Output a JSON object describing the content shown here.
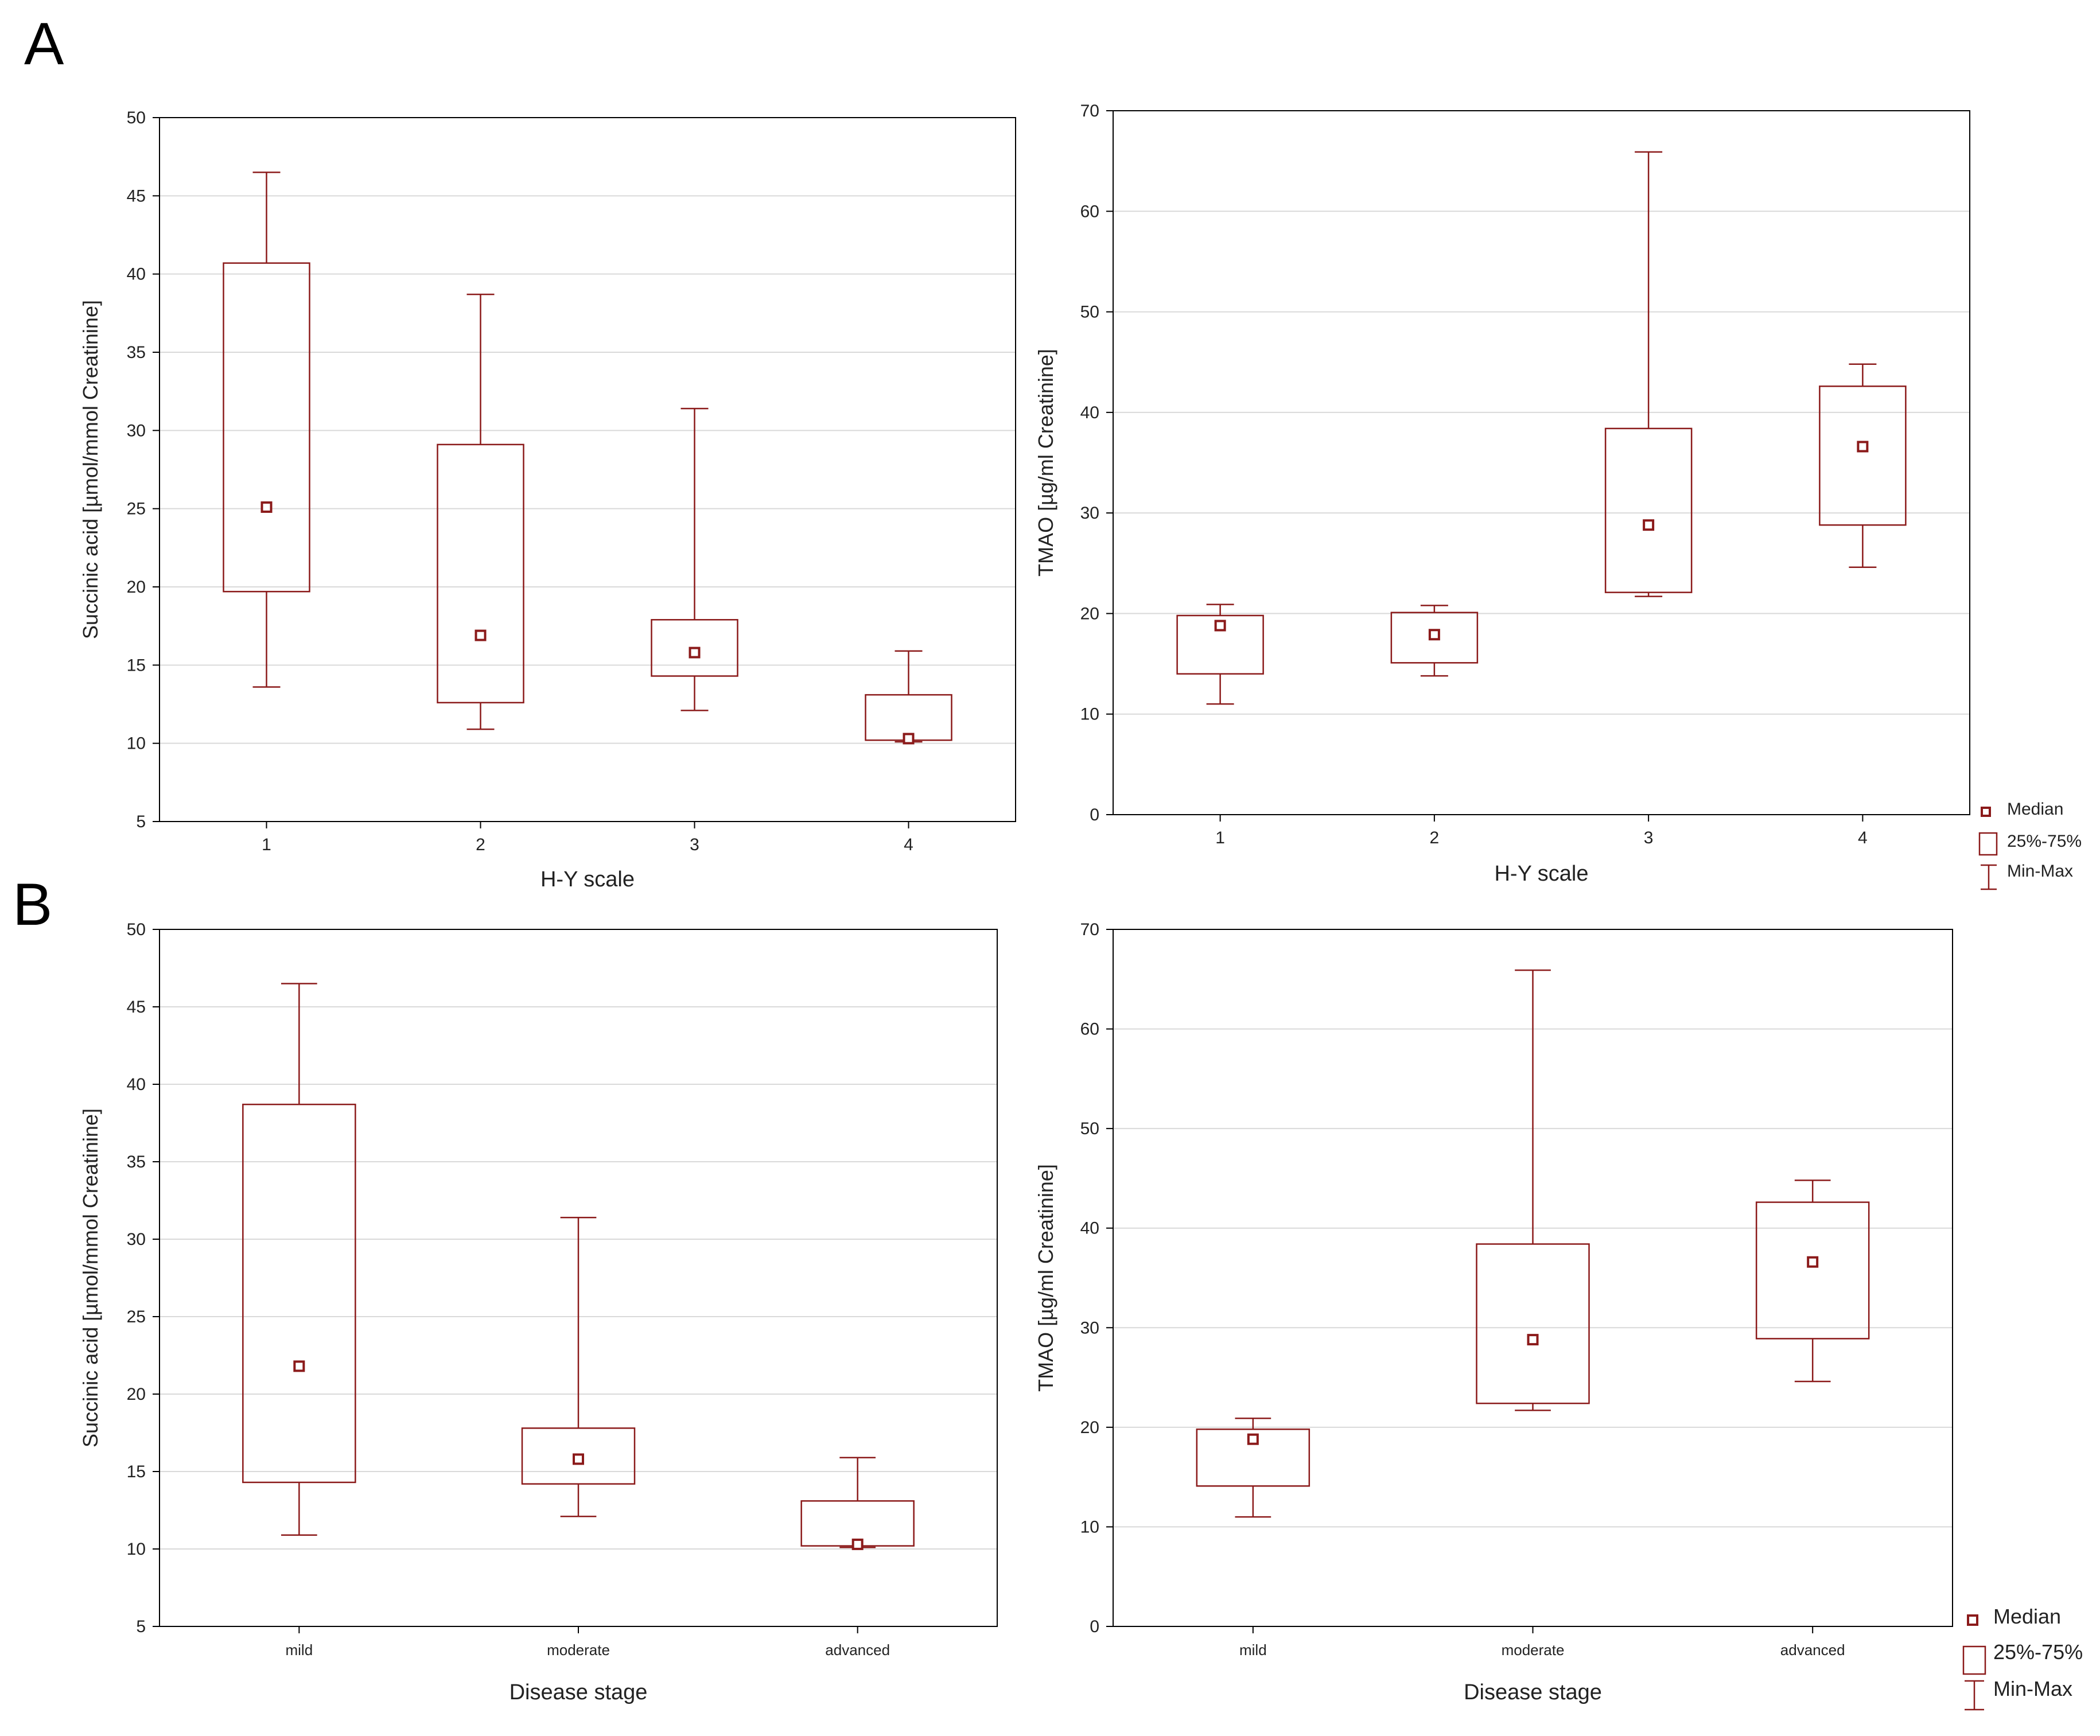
{
  "panel_labels": [
    "A",
    "B"
  ],
  "style": {
    "series_color": "#8b1a1a",
    "grid_color": "#d9d9d9",
    "axis_color": "#000000"
  },
  "legend": {
    "median": "Median",
    "iqr": "25%-75%",
    "range": "Min-Max"
  },
  "chart_data": [
    {
      "type": "box",
      "panel": "A",
      "xlabel": "H-Y scale",
      "ylabel": "Succinic acid [µmol/mmol Creatinine]",
      "ylim": [
        5,
        50
      ],
      "yticks": [
        5,
        10,
        15,
        20,
        25,
        30,
        35,
        40,
        45,
        50
      ],
      "categories": [
        "1",
        "2",
        "3",
        "4"
      ],
      "series": [
        {
          "name": "1",
          "min": 13.6,
          "q1": 19.7,
          "median": 25.1,
          "q3": 40.7,
          "max": 46.5
        },
        {
          "name": "2",
          "min": 10.9,
          "q1": 12.6,
          "median": 16.9,
          "q3": 29.1,
          "max": 38.7
        },
        {
          "name": "3",
          "min": 12.1,
          "q1": 14.3,
          "median": 15.8,
          "q3": 17.9,
          "max": 31.4
        },
        {
          "name": "4",
          "min": 10.1,
          "q1": 10.2,
          "median": 10.3,
          "q3": 13.1,
          "max": 15.9
        }
      ]
    },
    {
      "type": "box",
      "panel": "A",
      "xlabel": "H-Y scale",
      "ylabel": "TMAO [µg/ml Creatinine]",
      "ylim": [
        0,
        70
      ],
      "yticks": [
        0,
        10,
        20,
        30,
        40,
        50,
        60,
        70
      ],
      "categories": [
        "1",
        "2",
        "3",
        "4"
      ],
      "series": [
        {
          "name": "1",
          "min": 11.0,
          "q1": 14.0,
          "median": 18.8,
          "q3": 19.8,
          "max": 20.9
        },
        {
          "name": "2",
          "min": 13.8,
          "q1": 15.1,
          "median": 17.9,
          "q3": 20.1,
          "max": 20.8
        },
        {
          "name": "3",
          "min": 21.7,
          "q1": 22.1,
          "median": 28.8,
          "q3": 38.4,
          "max": 65.9
        },
        {
          "name": "4",
          "min": 24.6,
          "q1": 28.8,
          "median": 36.6,
          "q3": 42.6,
          "max": 44.8
        }
      ]
    },
    {
      "type": "box",
      "panel": "B",
      "xlabel": "Disease stage",
      "ylabel": "Succinic acid [µmol/mmol Creatinine]",
      "ylim": [
        5,
        50
      ],
      "yticks": [
        5,
        10,
        15,
        20,
        25,
        30,
        35,
        40,
        45,
        50
      ],
      "categories": [
        "mild",
        "moderate",
        "advanced"
      ],
      "series": [
        {
          "name": "mild",
          "min": 10.9,
          "q1": 14.3,
          "median": 21.8,
          "q3": 38.7,
          "max": 46.5
        },
        {
          "name": "moderate",
          "min": 12.1,
          "q1": 14.2,
          "median": 15.8,
          "q3": 17.8,
          "max": 31.4
        },
        {
          "name": "advanced",
          "min": 10.1,
          "q1": 10.2,
          "median": 10.3,
          "q3": 13.1,
          "max": 15.9
        }
      ]
    },
    {
      "type": "box",
      "panel": "B",
      "xlabel": "Disease stage",
      "ylabel": "TMAO [µg/ml Creatinine]",
      "ylim": [
        0,
        70
      ],
      "yticks": [
        0,
        10,
        20,
        30,
        40,
        50,
        60,
        70
      ],
      "categories": [
        "mild",
        "moderate",
        "advanced"
      ],
      "series": [
        {
          "name": "mild",
          "min": 11.0,
          "q1": 14.1,
          "median": 18.8,
          "q3": 19.8,
          "max": 20.9
        },
        {
          "name": "moderate",
          "min": 21.7,
          "q1": 22.4,
          "median": 28.8,
          "q3": 38.4,
          "max": 65.9
        },
        {
          "name": "advanced",
          "min": 24.6,
          "q1": 28.9,
          "median": 36.6,
          "q3": 42.6,
          "max": 44.8
        }
      ]
    }
  ]
}
